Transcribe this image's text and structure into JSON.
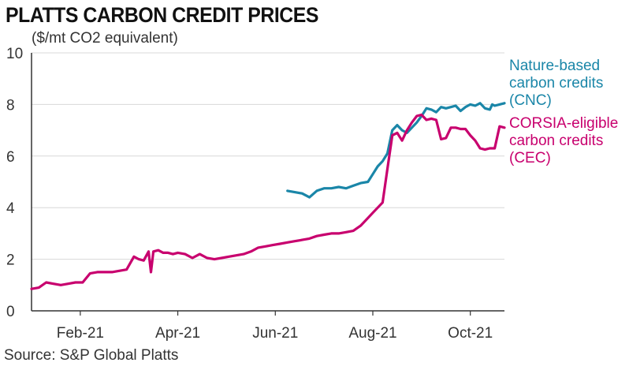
{
  "header": {
    "title": "PLATTS CARBON CREDIT PRICES",
    "subtitle": "($/mt CO2 equivalent)"
  },
  "footer": {
    "source": "Source: S&P Global Platts"
  },
  "colors": {
    "cnc": "#1a86a8",
    "cec": "#c8006e",
    "grid": "#d8d8d8",
    "axis": "#333333"
  },
  "chart_data": {
    "type": "line",
    "title": "PLATTS CARBON CREDIT PRICES",
    "ylabel": "($/mt CO2 equivalent)",
    "xlabel": "",
    "ylim": [
      0,
      10
    ],
    "yticks": [
      0,
      2,
      4,
      6,
      8,
      10
    ],
    "xlim": [
      0,
      9.7
    ],
    "xticks": [
      {
        "label": "Feb-21",
        "value": 1
      },
      {
        "label": "Apr-21",
        "value": 3
      },
      {
        "label": "Jun-21",
        "value": 5
      },
      {
        "label": "Aug-21",
        "value": 7
      },
      {
        "label": "Oct-21",
        "value": 9
      }
    ],
    "grid": true,
    "series": [
      {
        "name": "Nature-based carbon credits (CNC)",
        "label_lines": [
          "Nature-based",
          "carbon credits",
          "(CNC)"
        ],
        "color": "#1a86a8",
        "x": [
          5.25,
          5.4,
          5.55,
          5.7,
          5.85,
          6.0,
          6.15,
          6.3,
          6.45,
          6.6,
          6.75,
          6.9,
          7.0,
          7.1,
          7.2,
          7.3,
          7.4,
          7.5,
          7.6,
          7.7,
          7.8,
          7.9,
          8.0,
          8.1,
          8.2,
          8.3,
          8.4,
          8.5,
          8.6,
          8.7,
          8.8,
          8.9,
          9.0,
          9.1,
          9.2,
          9.3,
          9.4,
          9.45,
          9.5,
          9.6,
          9.7
        ],
        "y": [
          4.65,
          4.6,
          4.55,
          4.4,
          4.65,
          4.75,
          4.75,
          4.8,
          4.75,
          4.85,
          4.95,
          5.0,
          5.3,
          5.6,
          5.8,
          6.1,
          7.0,
          7.2,
          7.0,
          6.9,
          7.1,
          7.3,
          7.55,
          7.85,
          7.8,
          7.7,
          7.9,
          7.85,
          7.9,
          7.95,
          7.75,
          7.9,
          8.0,
          7.95,
          8.05,
          7.85,
          7.8,
          8.0,
          7.95,
          8.0,
          8.05
        ]
      },
      {
        "name": "CORSIA-eligible carbon credits (CEC)",
        "label_lines": [
          "CORSIA-eligible",
          "carbon credits",
          "(CEC)"
        ],
        "color": "#c8006e",
        "x": [
          0.0,
          0.15,
          0.3,
          0.45,
          0.6,
          0.75,
          0.9,
          1.05,
          1.2,
          1.35,
          1.5,
          1.65,
          1.8,
          1.95,
          2.1,
          2.2,
          2.3,
          2.4,
          2.45,
          2.5,
          2.6,
          2.7,
          2.8,
          2.9,
          3.0,
          3.15,
          3.3,
          3.45,
          3.6,
          3.75,
          3.9,
          4.05,
          4.2,
          4.35,
          4.5,
          4.65,
          4.8,
          4.95,
          5.1,
          5.25,
          5.4,
          5.55,
          5.7,
          5.85,
          6.0,
          6.15,
          6.3,
          6.45,
          6.6,
          6.75,
          6.9,
          7.0,
          7.1,
          7.2,
          7.3,
          7.4,
          7.5,
          7.6,
          7.7,
          7.8,
          7.9,
          8.0,
          8.1,
          8.2,
          8.3,
          8.4,
          8.5,
          8.6,
          8.7,
          8.8,
          8.9,
          9.0,
          9.1,
          9.2,
          9.3,
          9.4,
          9.5,
          9.6,
          9.7
        ],
        "y": [
          0.85,
          0.9,
          1.1,
          1.05,
          1.0,
          1.05,
          1.1,
          1.1,
          1.45,
          1.5,
          1.5,
          1.5,
          1.55,
          1.6,
          2.1,
          2.0,
          1.95,
          2.3,
          1.5,
          2.3,
          2.35,
          2.25,
          2.25,
          2.2,
          2.25,
          2.2,
          2.05,
          2.2,
          2.05,
          2.0,
          2.05,
          2.1,
          2.15,
          2.2,
          2.3,
          2.45,
          2.5,
          2.55,
          2.6,
          2.65,
          2.7,
          2.75,
          2.8,
          2.9,
          2.95,
          3.0,
          3.0,
          3.05,
          3.1,
          3.3,
          3.6,
          3.8,
          4.0,
          4.2,
          5.5,
          6.8,
          6.9,
          6.6,
          7.0,
          7.3,
          7.55,
          7.6,
          7.4,
          7.45,
          7.4,
          6.65,
          6.7,
          7.1,
          7.1,
          7.05,
          7.05,
          6.8,
          6.6,
          6.3,
          6.25,
          6.3,
          6.3,
          7.15,
          7.1
        ]
      }
    ]
  }
}
